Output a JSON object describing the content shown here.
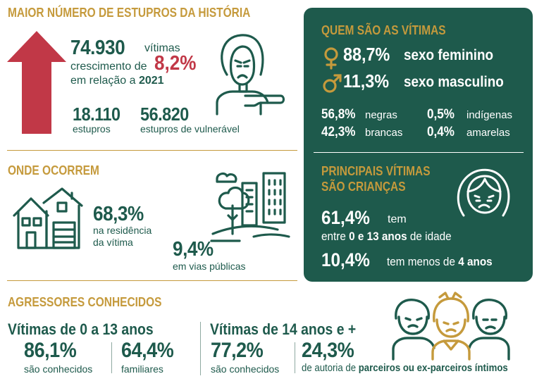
{
  "section_rapes": {
    "title": "MAIOR NÚMERO DE ESTUPROS DA HISTÓRIA",
    "total": "74.930",
    "total_unit": "vítimas",
    "growth_prefix": "crescimento de",
    "growth_value": "8,2%",
    "growth_suffix_pre": "em relação a",
    "growth_year": "2021",
    "rapes_value": "18.110",
    "rapes_label": "estupros",
    "vulnerable_value": "56.820",
    "vulnerable_label": "estupros de vulnerável"
  },
  "section_where": {
    "title": "ONDE OCORREM",
    "home_value": "68,3%",
    "home_label_1": "na residência",
    "home_label_2": "da vítima",
    "street_value": "9,4%",
    "street_label": "em vias públicas"
  },
  "section_aggressors": {
    "title": "AGRESSORES CONHECIDOS",
    "group1_title": "Vítimas de 0 a 13 anos",
    "group1_a_value": "86,1%",
    "group1_a_label": "são conhecidos",
    "group1_b_value": "64,4%",
    "group1_b_label": "familiares",
    "group2_title": "Vítimas de 14 anos e +",
    "group2_a_value": "77,2%",
    "group2_a_label": "são conhecidos",
    "group2_b_value": "24,3%",
    "group2_b_label_pre": "de autoria de",
    "group2_b_label_bold": "parceiros ou ex-parceiros íntimos"
  },
  "panel_victims": {
    "title": "QUEM SÃO AS VÍTIMAS",
    "female_value": "88,7%",
    "female_label": "sexo feminino",
    "male_value": "11,3%",
    "male_label": "sexo masculino",
    "race": [
      {
        "value": "56,8%",
        "label": "negras"
      },
      {
        "value": "0,5%",
        "label": "indígenas"
      },
      {
        "value": "42,3%",
        "label": "brancas"
      },
      {
        "value": "0,4%",
        "label": "amarelas"
      }
    ]
  },
  "panel_children": {
    "title_1": "PRINCIPAIS VÍTIMAS",
    "title_2": "SÃO CRIANÇAS",
    "value_1": "61,4%",
    "label_1_a": "tem",
    "label_1_b": "entre",
    "label_1_c": "0 e 13 anos",
    "label_1_d": "de idade",
    "value_2": "10,4%",
    "label_2_a": "tem menos de",
    "label_2_b": "4 anos"
  },
  "colors": {
    "green": "#1e5a4c",
    "gold": "#c59a3c",
    "red": "#c13847",
    "light_text": "#cfe0da"
  },
  "icons": [
    "arrow-up-icon",
    "sad-woman-icon",
    "houses-icon",
    "city-park-icon",
    "female-symbol-icon",
    "male-symbol-icon",
    "sad-girl-icon",
    "family-group-icon"
  ]
}
